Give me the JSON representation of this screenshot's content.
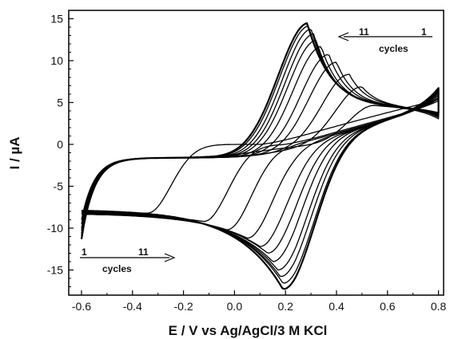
{
  "chart_data": {
    "type": "line",
    "title": "",
    "xlabel": "E / V vs Ag/AgCl/3 M KCl",
    "ylabel": "I / µA",
    "xlim": [
      -0.65,
      0.82
    ],
    "ylim": [
      -18,
      16
    ],
    "xticks": [
      -0.6,
      -0.4,
      -0.2,
      0.0,
      0.2,
      0.4,
      0.6,
      0.8
    ],
    "xtick_labels": [
      "-0.6",
      "-0.4",
      "-0.2",
      "0.0",
      "0.2",
      "0.4",
      "0.6",
      "0.8"
    ],
    "yticks": [
      -15,
      -10,
      -5,
      0,
      5,
      10,
      15
    ],
    "ytick_labels": [
      "-15",
      "-10",
      "-5",
      "0",
      "5",
      "10",
      "15"
    ],
    "grid": false,
    "legend": "none",
    "annotations": {
      "top": {
        "from_label": "11",
        "to_label": "1",
        "caption": "cycles",
        "direction": "left"
      },
      "bottom": {
        "from_label": "1",
        "to_label": "11",
        "caption": "cycles",
        "direction": "right"
      }
    },
    "series": [
      {
        "cycle": 1,
        "anodic_peak": [
          0.55,
          4.8
        ],
        "cathodic_peak": [
          -0.34,
          -8.2
        ],
        "start_current": -9.0,
        "end_current": 0.5
      },
      {
        "cycle": 2,
        "anodic_peak": [
          0.5,
          7.0
        ],
        "cathodic_peak": [
          -0.12,
          -9.2
        ],
        "start_current": -9.5,
        "end_current": 1.0
      },
      {
        "cycle": 3,
        "anodic_peak": [
          0.45,
          8.5
        ],
        "cathodic_peak": [
          -0.03,
          -10.2
        ],
        "start_current": -10.0,
        "end_current": 1.4
      },
      {
        "cycle": 4,
        "anodic_peak": [
          0.4,
          10.0
        ],
        "cathodic_peak": [
          0.05,
          -11.2
        ],
        "start_current": -10.3,
        "end_current": 1.7
      },
      {
        "cycle": 5,
        "anodic_peak": [
          0.37,
          11.0
        ],
        "cathodic_peak": [
          0.1,
          -12.2
        ],
        "start_current": -10.6,
        "end_current": 2.0
      },
      {
        "cycle": 6,
        "anodic_peak": [
          0.34,
          12.0
        ],
        "cathodic_peak": [
          0.13,
          -13.0
        ],
        "start_current": -10.8,
        "end_current": 2.2
      },
      {
        "cycle": 7,
        "anodic_peak": [
          0.32,
          12.8
        ],
        "cathodic_peak": [
          0.15,
          -14.0
        ],
        "start_current": -11.0,
        "end_current": 2.4
      },
      {
        "cycle": 8,
        "anodic_peak": [
          0.31,
          13.6
        ],
        "cathodic_peak": [
          0.17,
          -15.0
        ],
        "start_current": -11.1,
        "end_current": 2.6
      },
      {
        "cycle": 9,
        "anodic_peak": [
          0.3,
          14.2
        ],
        "cathodic_peak": [
          0.18,
          -15.8
        ],
        "start_current": -11.2,
        "end_current": 2.7
      },
      {
        "cycle": 10,
        "anodic_peak": [
          0.29,
          14.6
        ],
        "cathodic_peak": [
          0.19,
          -16.6
        ],
        "start_current": -11.3,
        "end_current": 2.8
      },
      {
        "cycle": 11,
        "anodic_peak": [
          0.285,
          14.9
        ],
        "cathodic_peak": [
          0.19,
          -17.3
        ],
        "start_current": -11.3,
        "end_current": 2.9
      }
    ]
  }
}
